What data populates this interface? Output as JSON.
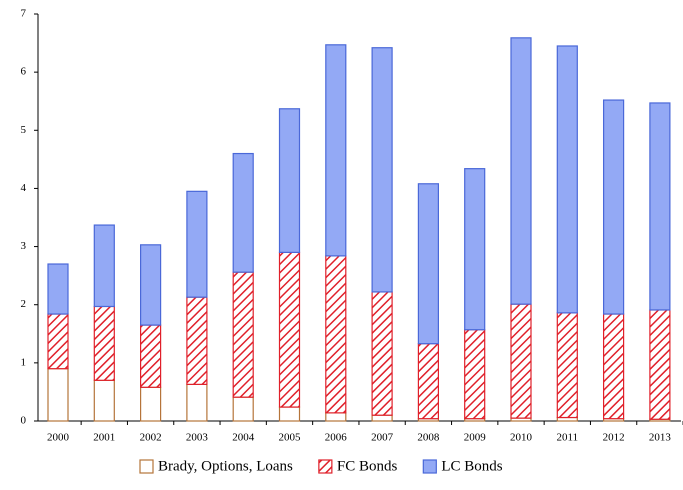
{
  "chart_data": {
    "type": "stacked_bar",
    "categories": [
      "2000",
      "2001",
      "2002",
      "2003",
      "2004",
      "2005",
      "2006",
      "2007",
      "2008",
      "2009",
      "2010",
      "2011",
      "2012",
      "2013"
    ],
    "series": [
      {
        "name": "Brady, Options, Loans",
        "color": "#b5743a",
        "fill": "#ffffff",
        "pattern": "none",
        "values": [
          0.9,
          0.7,
          0.58,
          0.63,
          0.41,
          0.24,
          0.14,
          0.1,
          0.04,
          0.04,
          0.05,
          0.06,
          0.04,
          0.03
        ]
      },
      {
        "name": "FC Bonds",
        "color": "#e0202a",
        "fill": "#ffffff",
        "pattern": "hatch",
        "values": [
          0.94,
          1.27,
          1.07,
          1.5,
          2.15,
          2.66,
          2.7,
          2.12,
          1.29,
          1.53,
          1.96,
          1.8,
          1.8,
          1.88
        ]
      },
      {
        "name": "LC Bonds",
        "color": "#4a68d8",
        "fill": "#93a9f5",
        "pattern": "none",
        "values": [
          0.86,
          1.4,
          1.38,
          1.82,
          2.04,
          2.47,
          3.63,
          4.2,
          2.75,
          2.77,
          4.58,
          4.59,
          3.68,
          3.56
        ]
      }
    ],
    "ylim": [
      0,
      7
    ],
    "yticks": [
      0,
      1,
      2,
      3,
      4,
      5,
      6,
      7
    ],
    "grid": false,
    "legend": "bottom"
  }
}
